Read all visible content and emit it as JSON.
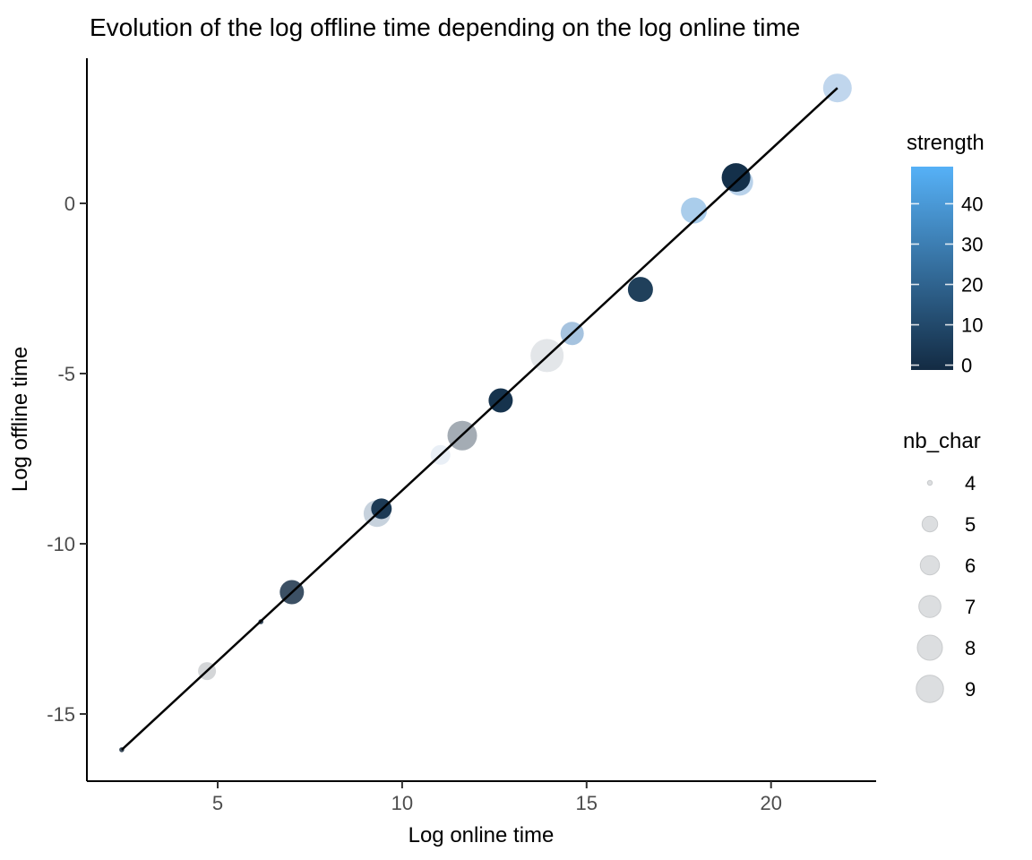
{
  "chart_data": {
    "type": "scatter",
    "title": "Evolution of the log offline time depending on the log online time",
    "xlabel": "Log online time",
    "ylabel": "Log offline time",
    "x_ticks": [
      5,
      10,
      15,
      20
    ],
    "y_ticks": [
      0,
      -5,
      -10,
      -15
    ],
    "xlim": [
      1.5,
      22.8
    ],
    "ylim": [
      -17.2,
      4.3
    ],
    "grid": false,
    "background": "#ffffff",
    "axis_color": "#000000",
    "tick_label_color": "#4d4d4d",
    "trend_line": {
      "x1": 2.4,
      "y1": -16.05,
      "x2": 21.8,
      "y2": 3.39,
      "color": "#000000",
      "width": 2.5
    },
    "points": [
      {
        "x": 2.4,
        "y": -16.05,
        "nb_char": 4,
        "strength": 6,
        "r": 2.8,
        "color": "#3e4e5e"
      },
      {
        "x": 4.71,
        "y": -13.74,
        "nb_char": 5,
        "strength": null,
        "r": 10.0,
        "color": "#d4d6d8"
      },
      {
        "x": 6.17,
        "y": -12.29,
        "nb_char": 4,
        "strength": 5,
        "r": 2.8,
        "color": "#374a5e"
      },
      {
        "x": 7.01,
        "y": -11.42,
        "nb_char": 7,
        "strength": 7,
        "r": 13.5,
        "color": "#3c5064"
      },
      {
        "x": 9.32,
        "y": -9.11,
        "nb_char": 8,
        "strength": null,
        "r": 15.0,
        "color": "#c7d2dd"
      },
      {
        "x": 9.44,
        "y": -8.97,
        "nb_char": 6,
        "strength": 3,
        "r": 11.5,
        "color": "#1c3a55"
      },
      {
        "x": 11.04,
        "y": -7.39,
        "nb_char": 6,
        "strength": null,
        "r": 11.0,
        "color": "#e9eff6"
      },
      {
        "x": 11.63,
        "y": -6.82,
        "nb_char": 8,
        "strength": null,
        "r": 16.5,
        "color": "#a4acb4"
      },
      {
        "x": 12.67,
        "y": -5.79,
        "nb_char": 7,
        "strength": 1,
        "r": 13.5,
        "color": "#16334d"
      },
      {
        "x": 13.93,
        "y": -4.47,
        "nb_char": 9,
        "strength": null,
        "r": 18.5,
        "color": "#e3e6e9"
      },
      {
        "x": 14.61,
        "y": -3.82,
        "nb_char": 7,
        "strength": 38,
        "r": 13.0,
        "color": "#a6c3df"
      },
      {
        "x": 16.46,
        "y": -2.53,
        "nb_char": 7,
        "strength": 4,
        "r": 14.0,
        "color": "#20405b"
      },
      {
        "x": 17.91,
        "y": -0.21,
        "nb_char": 7,
        "strength": 42,
        "r": 14.5,
        "color": "#aacdeb"
      },
      {
        "x": 19.15,
        "y": 0.62,
        "nb_char": 8,
        "strength": 40,
        "r": 15.0,
        "color": "#b9d2ea"
      },
      {
        "x": 19.05,
        "y": 0.76,
        "nb_char": 8,
        "strength": 0,
        "r": 16.0,
        "color": "#14304a"
      },
      {
        "x": 21.8,
        "y": 3.39,
        "nb_char": 8,
        "strength": 45,
        "r": 16.0,
        "color": "#c0d6ed"
      }
    ],
    "legend_strength": {
      "title": "strength",
      "ticks": [
        40,
        30,
        20,
        10,
        0
      ],
      "bar_top_value": 49.2,
      "bar_bottom_value": -1.2,
      "high_color": "#56B1F7",
      "low_color": "#132B43",
      "tick_mark_color": "#ffffff"
    },
    "legend_nb_char": {
      "title": "nb_char",
      "fill": "#dcdee0",
      "stroke": "#c9cbcd",
      "entries": [
        {
          "value": 4,
          "r": 2.7
        },
        {
          "value": 5,
          "r": 8.7
        },
        {
          "value": 6,
          "r": 10.7
        },
        {
          "value": 7,
          "r": 12.3
        },
        {
          "value": 8,
          "r": 14.0
        },
        {
          "value": 9,
          "r": 15.2
        }
      ]
    }
  }
}
